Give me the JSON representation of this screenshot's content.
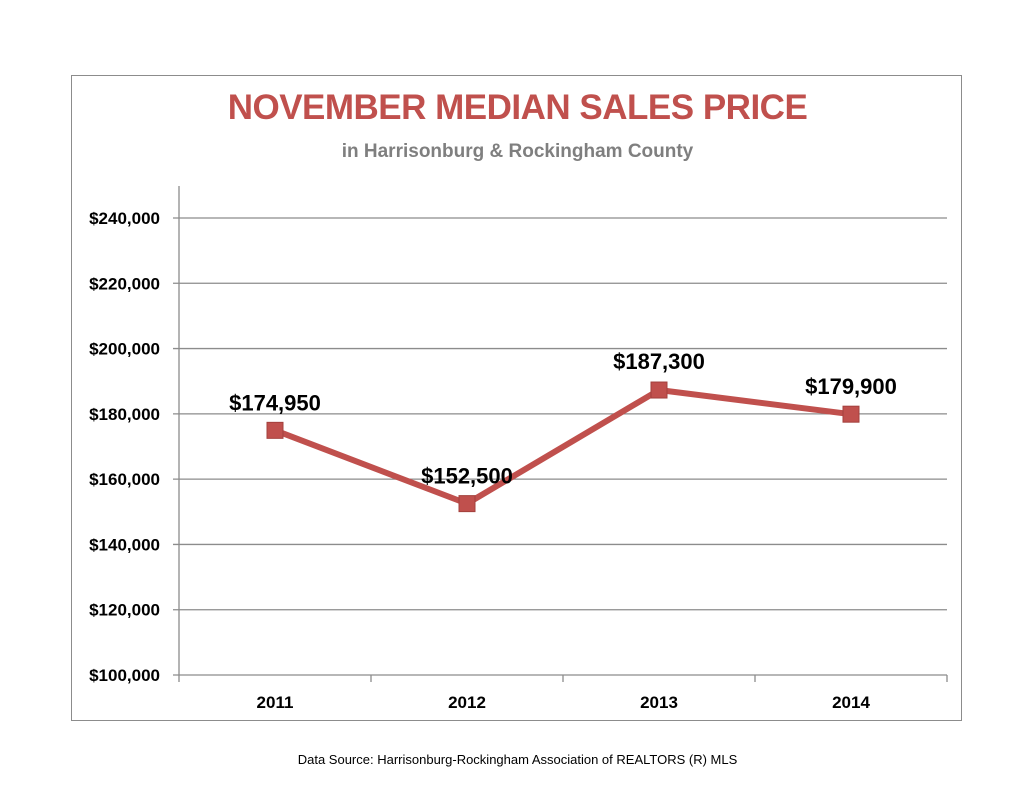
{
  "chart_data": {
    "type": "line",
    "title": "NOVEMBER MEDIAN SALES PRICE",
    "subtitle": "in Harrisonburg  & Rockingham County",
    "xlabel": "",
    "ylabel": "",
    "categories": [
      "2011",
      "2012",
      "2013",
      "2014"
    ],
    "series": [
      {
        "values": [
          174950,
          152500,
          187300,
          179900
        ],
        "data_labels": [
          "$174,950",
          "$152,500",
          "$187,300",
          "$179,900"
        ],
        "color": "#c0504d",
        "marker": "square"
      }
    ],
    "ylim": [
      100000,
      240000
    ],
    "y_ticks": [
      100000,
      120000,
      140000,
      160000,
      180000,
      200000,
      220000,
      240000
    ],
    "y_tick_labels": [
      "$100,000",
      "$120,000",
      "$140,000",
      "$160,000",
      "$180,000",
      "$200,000",
      "$220,000",
      "$240,000"
    ],
    "grid": true,
    "legend": "none"
  },
  "footer": {
    "source": "Data Source: Harrisonburg-Rockingham Association of REALTORS (R) MLS"
  },
  "colors": {
    "title": "#c0504d",
    "subtitle": "#7f7f7f",
    "line": "#c0504d",
    "grid": "#8c8c8c"
  }
}
